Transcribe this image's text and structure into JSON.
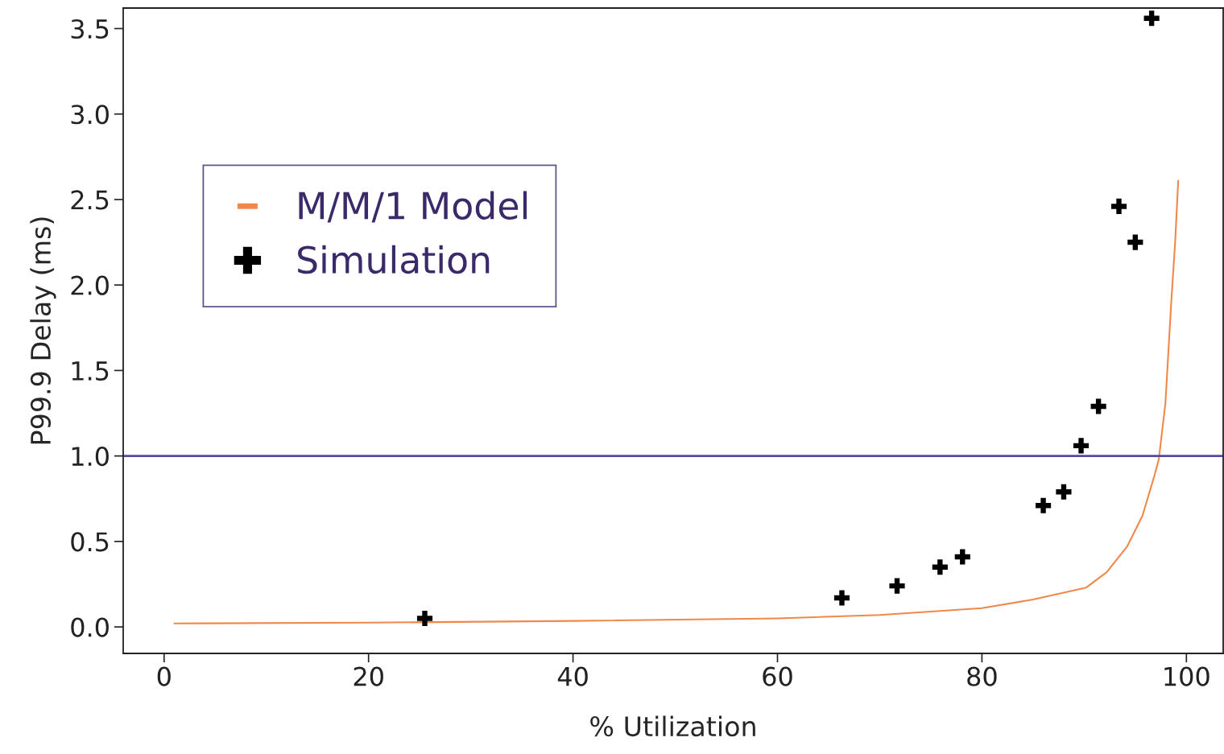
{
  "chart_data": {
    "type": "scatter",
    "xlabel": "% Utilization",
    "ylabel": "P99.9 Delay (ms)",
    "xlim": [
      -4,
      103.6
    ],
    "ylim": [
      -0.155,
      3.62
    ],
    "xticks": [
      0,
      20,
      40,
      60,
      80,
      100
    ],
    "yticks": [
      {
        "value": 0,
        "label": "0.0"
      },
      {
        "value": 0.5,
        "label": "0.5"
      },
      {
        "value": 1,
        "label": "1.0"
      },
      {
        "value": 1.5,
        "label": "1.5"
      },
      {
        "value": 2,
        "label": "2.0"
      },
      {
        "value": 2.5,
        "label": "2.5"
      },
      {
        "value": 3,
        "label": "3.0"
      },
      {
        "value": 3.5,
        "label": "3.5"
      }
    ],
    "series": [
      {
        "name": "M/M/1 Model",
        "type": "line",
        "color": "#f0884a",
        "marker": "none",
        "line_style": "solid",
        "x": [
          1,
          20,
          40,
          60,
          70,
          80,
          85,
          88,
          90.2,
          92.2,
          94.2,
          95.7,
          96.9,
          97.3,
          97.95,
          98.5,
          98.9,
          99.2
        ],
        "values": [
          0.02,
          0.025,
          0.035,
          0.05,
          0.07,
          0.11,
          0.16,
          0.2,
          0.23,
          0.32,
          0.47,
          0.65,
          0.89,
          0.98,
          1.31,
          1.88,
          2.25,
          2.61
        ]
      },
      {
        "name": "Simulation",
        "type": "scatter",
        "color": "#000000",
        "marker": "cross",
        "x": [
          25.5,
          66.3,
          71.7,
          75.9,
          78.1,
          86.0,
          88.0,
          89.7,
          91.4,
          93.4,
          95.0,
          96.6
        ],
        "values": [
          0.05,
          0.17,
          0.24,
          0.35,
          0.41,
          0.71,
          0.79,
          1.06,
          1.29,
          2.46,
          2.25,
          3.56
        ]
      }
    ],
    "ref_lines": [
      {
        "axis": "y",
        "value": 1.0,
        "color": "#5848a0"
      }
    ],
    "legend": "top left",
    "grid": false
  }
}
